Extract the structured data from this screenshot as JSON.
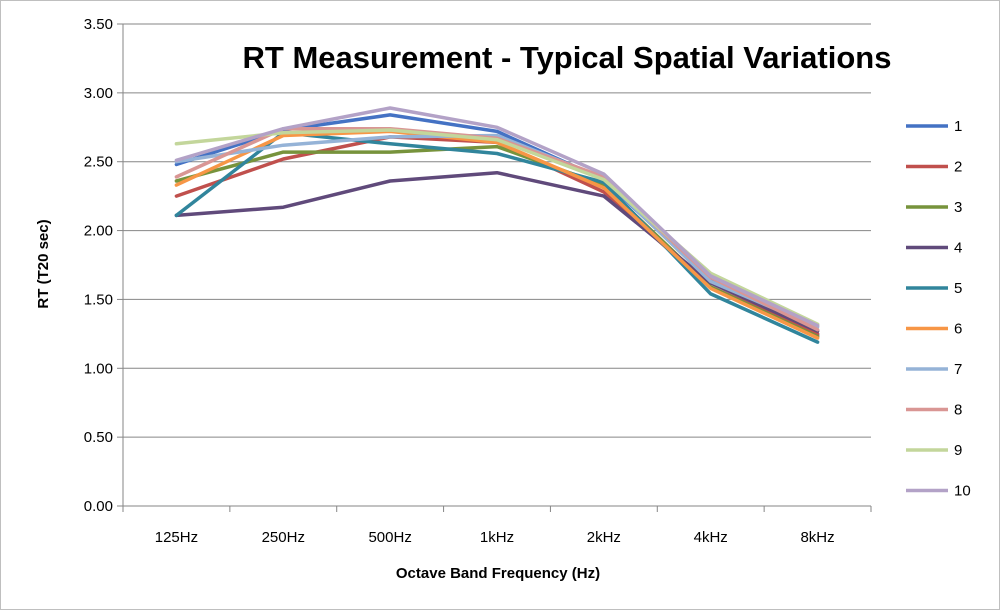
{
  "chart_data": {
    "type": "line",
    "title": "RT Measurement - Typical Spatial Variations",
    "xlabel": "Octave Band Frequency (Hz)",
    "ylabel": "RT (T20 sec)",
    "categories": [
      "125Hz",
      "250Hz",
      "500Hz",
      "1kHz",
      "2kHz",
      "4kHz",
      "8kHz"
    ],
    "ylim": [
      0,
      3.5
    ],
    "yticks": [
      "0.00",
      "0.50",
      "1.00",
      "1.50",
      "2.00",
      "2.50",
      "3.00",
      "3.50"
    ],
    "grid": "horizontal",
    "legend_position": "right",
    "series": [
      {
        "name": "1",
        "color": "#4472c4",
        "values": [
          2.48,
          2.73,
          2.84,
          2.72,
          2.37,
          1.64,
          1.24
        ]
      },
      {
        "name": "2",
        "color": "#c0504d",
        "values": [
          2.25,
          2.52,
          2.68,
          2.64,
          2.28,
          1.59,
          1.25
        ]
      },
      {
        "name": "3",
        "color": "#77933c",
        "values": [
          2.36,
          2.57,
          2.57,
          2.61,
          2.33,
          1.59,
          1.23
        ]
      },
      {
        "name": "4",
        "color": "#604a7b",
        "values": [
          2.11,
          2.17,
          2.36,
          2.42,
          2.25,
          1.62,
          1.27
        ]
      },
      {
        "name": "5",
        "color": "#31859c",
        "values": [
          2.11,
          2.71,
          2.63,
          2.56,
          2.35,
          1.54,
          1.19
        ]
      },
      {
        "name": "6",
        "color": "#f79646",
        "values": [
          2.33,
          2.69,
          2.72,
          2.64,
          2.31,
          1.58,
          1.22
        ]
      },
      {
        "name": "7",
        "color": "#95b3d7",
        "values": [
          2.5,
          2.62,
          2.68,
          2.69,
          2.38,
          1.63,
          1.3
        ]
      },
      {
        "name": "8",
        "color": "#d99694",
        "values": [
          2.39,
          2.74,
          2.74,
          2.67,
          2.39,
          1.66,
          1.28
        ]
      },
      {
        "name": "9",
        "color": "#c3d69b",
        "values": [
          2.63,
          2.71,
          2.73,
          2.66,
          2.37,
          1.69,
          1.32
        ]
      },
      {
        "name": "10",
        "color": "#b3a2c7",
        "values": [
          2.51,
          2.74,
          2.89,
          2.75,
          2.41,
          1.67,
          1.31
        ]
      }
    ]
  }
}
